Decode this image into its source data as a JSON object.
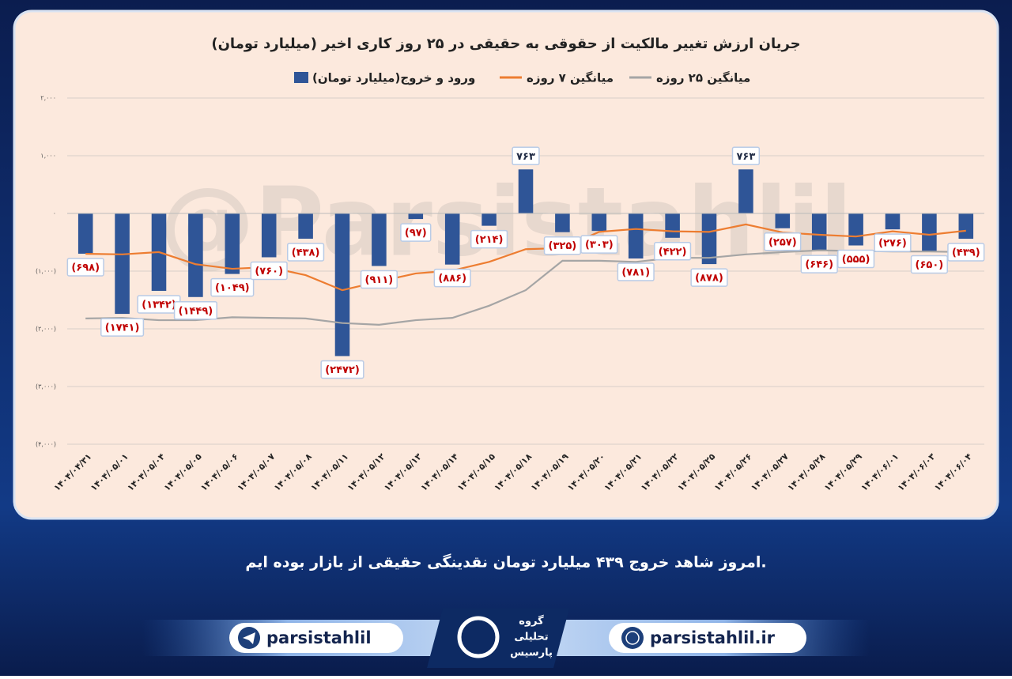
{
  "chart_data": {
    "type": "bar",
    "title": "جریان ارزش تغییر مالکیت از حقوقی به حقیقی در ۲۵ روز کاری اخیر (میلیارد تومان)",
    "watermark": "@Parsistahlil",
    "categories": [
      "۱۴۰۴/۰۴/۳۱",
      "۱۴۰۴/۰۵/۰۱",
      "۱۴۰۴/۰۵/۰۴",
      "۱۴۰۴/۰۵/۰۵",
      "۱۴۰۴/۰۵/۰۶",
      "۱۴۰۴/۰۵/۰۷",
      "۱۴۰۴/۰۵/۰۸",
      "۱۴۰۴/۰۵/۱۱",
      "۱۴۰۴/۰۵/۱۲",
      "۱۴۰۴/۰۵/۱۳",
      "۱۴۰۴/۰۵/۱۴",
      "۱۴۰۴/۰۵/۱۵",
      "۱۴۰۴/۰۵/۱۸",
      "۱۴۰۴/۰۵/۱۹",
      "۱۴۰۴/۰۵/۲۰",
      "۱۴۰۴/۰۵/۲۱",
      "۱۴۰۴/۰۵/۲۲",
      "۱۴۰۴/۰۵/۲۵",
      "۱۴۰۴/۰۵/۲۶",
      "۱۴۰۴/۰۵/۲۷",
      "۱۴۰۴/۰۵/۲۸",
      "۱۴۰۴/۰۵/۲۹",
      "۱۴۰۴/۰۶/۰۱",
      "۱۴۰۴/۰۶/۰۳",
      "۱۴۰۴/۰۶/۰۴"
    ],
    "series": [
      {
        "name": "ورود و خروج(میلیارد تومان)",
        "type": "bar",
        "color": "#2f5597",
        "values": [
          -698,
          -1741,
          -1342,
          -1449,
          -1049,
          -760,
          -438,
          -2472,
          -911,
          -97,
          -886,
          -214,
          763,
          -325,
          -303,
          -781,
          -422,
          -878,
          763,
          -257,
          -646,
          -555,
          -276,
          -650,
          -439
        ],
        "value_labels": [
          "(۶۹۸)",
          "(۱۷۴۱)",
          "(۱۳۴۲)",
          "(۱۴۴۹)",
          "(۱۰۴۹)",
          "(۷۶۰)",
          "(۴۳۸)",
          "(۲۴۷۲)",
          "(۹۱۱)",
          "(۹۷)",
          "(۸۸۶)",
          "(۲۱۴)",
          "۷۶۳",
          "(۳۲۵)",
          "(۳۰۳)",
          "(۷۸۱)",
          "(۴۲۲)",
          "(۸۷۸)",
          "۷۶۳",
          "(۲۵۷)",
          "(۶۴۶)",
          "(۵۵۵)",
          "(۲۷۶)",
          "(۶۵۰)",
          "(۴۳۹)"
        ]
      },
      {
        "name": "میانگین ۷ روزه",
        "type": "line",
        "color": "#ed7d31",
        "values": [
          -700,
          -710,
          -670,
          -880,
          -960,
          -930,
          -1070,
          -1330,
          -1180,
          -1040,
          -990,
          -840,
          -620,
          -600,
          -320,
          -270,
          -310,
          -320,
          -190,
          -330,
          -370,
          -400,
          -310,
          -370,
          -300
        ]
      },
      {
        "name": "میانگین ۲۵ روزه",
        "type": "line",
        "color": "#a5a5a5",
        "values": [
          -1820,
          -1810,
          -1850,
          -1850,
          -1800,
          -1810,
          -1820,
          -1900,
          -1930,
          -1850,
          -1810,
          -1600,
          -1330,
          -820,
          -820,
          -840,
          -770,
          -770,
          -710,
          -670,
          -640,
          -650,
          -660,
          -660,
          -670
        ]
      }
    ],
    "ylim": [
      -4000,
      2000
    ],
    "yticks": [
      {
        "value": 2000,
        "label": "۲,۰۰۰"
      },
      {
        "value": 1000,
        "label": "۱,۰۰۰"
      },
      {
        "value": 0,
        "label": "۰"
      },
      {
        "value": -1000,
        "label": "(۱,۰۰۰)"
      },
      {
        "value": -2000,
        "label": "(۲,۰۰۰)"
      },
      {
        "value": -3000,
        "label": "(۳,۰۰۰)"
      },
      {
        "value": -4000,
        "label": "(۴,۰۰۰)"
      }
    ],
    "grid": true
  },
  "footer": {
    "text": "امروز شاهد خروج ۴۳۹ میلیارد تومان نقدینگی حقیقی از بازار بوده ایم.",
    "telegram": "parsistahlil",
    "website": "parsistahlil.ir",
    "logo": [
      "گروه",
      "تحلیلی",
      "پارسیس"
    ]
  }
}
